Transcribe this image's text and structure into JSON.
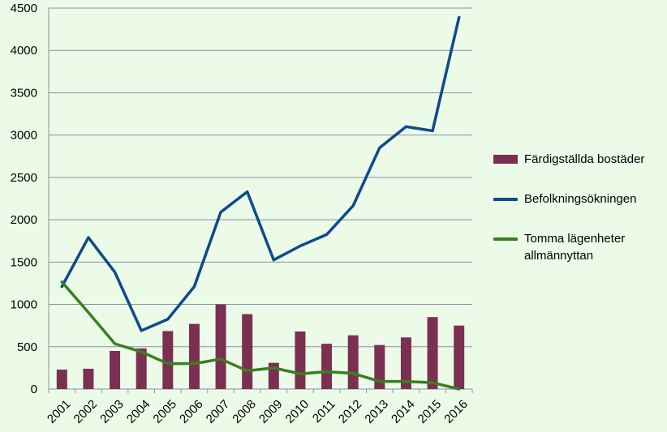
{
  "chart_data": {
    "type": "bar+line",
    "title": "",
    "xlabel": "",
    "ylabel": "",
    "ylim": [
      0,
      4500
    ],
    "yticks": [
      0,
      500,
      1000,
      1500,
      2000,
      2500,
      3000,
      3500,
      4000,
      4500
    ],
    "grid": "horizontal",
    "legend_position": "right",
    "categories": [
      "2001",
      "2002",
      "2003",
      "2004",
      "2005",
      "2006",
      "2007",
      "2008",
      "2009",
      "2010",
      "2011",
      "2012",
      "2013",
      "2014",
      "2015",
      "2016"
    ],
    "series": [
      {
        "name": "Färdigställda bostäder",
        "kind": "bar",
        "color": "#7b3052",
        "values": [
          230,
          240,
          450,
          480,
          685,
          770,
          1000,
          885,
          310,
          680,
          535,
          635,
          520,
          610,
          850,
          750
        ]
      },
      {
        "name": "Befolkningsökningen",
        "kind": "line",
        "color": "#0f4a8c",
        "values": [
          1210,
          1790,
          1380,
          690,
          825,
          1210,
          2090,
          2330,
          1525,
          1690,
          1825,
          2165,
          2850,
          3100,
          3050,
          4390
        ]
      },
      {
        "name": "Tomma lägenheter allmännyttan",
        "kind": "line",
        "color": "#3b7e22",
        "values": [
          1265,
          905,
          535,
          440,
          300,
          300,
          355,
          215,
          250,
          180,
          205,
          185,
          90,
          90,
          75,
          0
        ]
      }
    ]
  }
}
